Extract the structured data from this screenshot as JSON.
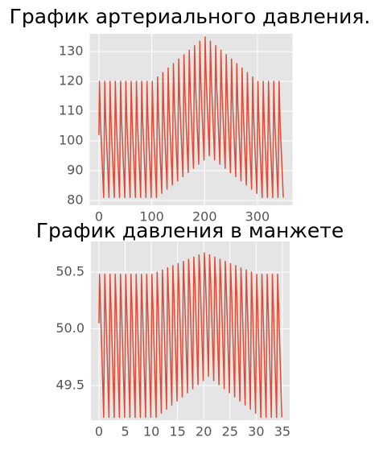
{
  "chart_data": [
    {
      "type": "line",
      "title": "График артериального давления.",
      "x": [
        0,
        1,
        3,
        9,
        11,
        13,
        19,
        21,
        23,
        29,
        31,
        33,
        39,
        41,
        43,
        49,
        51,
        53,
        59,
        61,
        63,
        69,
        71,
        73,
        79,
        81,
        83,
        89,
        91,
        93,
        99,
        101,
        103,
        109,
        111,
        113,
        119,
        121,
        123,
        129,
        131,
        133,
        139,
        141,
        143,
        149,
        151,
        153,
        159,
        161,
        163,
        169,
        171,
        173,
        179,
        181,
        183,
        189,
        191,
        193,
        199,
        201,
        203,
        209,
        211,
        213,
        219,
        221,
        223,
        229,
        231,
        233,
        239,
        241,
        243,
        249,
        251,
        253,
        259,
        261,
        263,
        269,
        271,
        273,
        279,
        281,
        283,
        289,
        291,
        293,
        299,
        301,
        303,
        309,
        311,
        313,
        319,
        321,
        323,
        329,
        331,
        333,
        339,
        341,
        343,
        349
      ],
      "series": [
        {
          "color": "#E24A33",
          "values": [
            102,
            120,
            106,
            81,
            120,
            106,
            81,
            120,
            106,
            81,
            120,
            106,
            81,
            120,
            106,
            81,
            120,
            106,
            81,
            120,
            106,
            81,
            120,
            106,
            81,
            120,
            106,
            81,
            120,
            106,
            81,
            120,
            106,
            81,
            121.5,
            107.5,
            82.4,
            123,
            109,
            83.8,
            124.5,
            110.5,
            85.2,
            126,
            112,
            86.6,
            127.5,
            113.5,
            88,
            129,
            115,
            89.4,
            130.5,
            116.5,
            90.8,
            132,
            118,
            92.2,
            133.5,
            119.5,
            93.6,
            135,
            121,
            95,
            133.5,
            119.5,
            93.6,
            132,
            118,
            92.2,
            130.5,
            116.5,
            90.8,
            129,
            115,
            89.4,
            127.5,
            113.5,
            88,
            126,
            112,
            86.6,
            124.5,
            110.5,
            85.2,
            123,
            109,
            83.8,
            121.5,
            107.5,
            82.4,
            120,
            106,
            81,
            120,
            106,
            81,
            120,
            106,
            81,
            120,
            106,
            81,
            120,
            106,
            81
          ]
        }
      ],
      "xlim": [
        -17.45,
        366.45
      ],
      "ylim": [
        78.4,
        136
      ],
      "xticks": [
        0,
        100,
        200,
        300
      ],
      "yticks": [
        80,
        90,
        100,
        110,
        120,
        130
      ],
      "grid": true
    },
    {
      "type": "line",
      "title": "График давления в манжете",
      "x": [
        0,
        0.1,
        0.3,
        0.9,
        1.1,
        1.3,
        1.9,
        2.1,
        2.3,
        2.9,
        3.1,
        3.3,
        3.9,
        4.1,
        4.3,
        4.9,
        5.1,
        5.3,
        5.9,
        6.1,
        6.3,
        6.9,
        7.1,
        7.3,
        7.9,
        8.1,
        8.3,
        8.9,
        9.1,
        9.3,
        9.9,
        10.1,
        10.3,
        10.9,
        11.1,
        11.3,
        11.9,
        12.1,
        12.3,
        12.9,
        13.1,
        13.3,
        13.9,
        14.1,
        14.3,
        14.9,
        15.1,
        15.3,
        15.9,
        16.1,
        16.3,
        16.9,
        17.1,
        17.3,
        17.9,
        18.1,
        18.3,
        18.9,
        19.1,
        19.3,
        19.9,
        20.1,
        20.3,
        20.9,
        21.1,
        21.3,
        21.9,
        22.1,
        22.3,
        22.9,
        23.1,
        23.3,
        23.9,
        24.1,
        24.3,
        24.9,
        25.1,
        25.3,
        25.9,
        26.1,
        26.3,
        26.9,
        27.1,
        27.3,
        27.9,
        28.1,
        28.3,
        28.9,
        29.1,
        29.3,
        29.9,
        30.1,
        30.3,
        30.9,
        31.1,
        31.3,
        31.9,
        32.1,
        32.3,
        32.9,
        33.1,
        33.3,
        33.9,
        34.1,
        34.3,
        34.9
      ],
      "series": [
        {
          "color": "#E24A33",
          "values": [
            50.05,
            50.48,
            50.18,
            49.22,
            50.48,
            50.18,
            49.22,
            50.48,
            50.18,
            49.22,
            50.48,
            50.18,
            49.22,
            50.48,
            50.18,
            49.22,
            50.48,
            50.18,
            49.22,
            50.48,
            50.18,
            49.22,
            50.48,
            50.18,
            49.22,
            50.48,
            50.18,
            49.22,
            50.48,
            50.18,
            49.22,
            50.48,
            50.18,
            49.22,
            50.499,
            50.21,
            49.256,
            50.518,
            50.24,
            49.292,
            50.537,
            50.27,
            49.328,
            50.556,
            50.3,
            49.364,
            50.575,
            50.33,
            49.4,
            50.594,
            50.36,
            49.436,
            50.613,
            50.39,
            49.472,
            50.632,
            50.42,
            49.508,
            50.651,
            50.45,
            49.544,
            50.67,
            50.48,
            49.58,
            50.651,
            50.45,
            49.544,
            50.632,
            50.42,
            49.508,
            50.613,
            50.39,
            49.472,
            50.594,
            50.36,
            49.436,
            50.575,
            50.33,
            49.4,
            50.556,
            50.3,
            49.364,
            50.537,
            50.27,
            49.328,
            50.518,
            50.24,
            49.292,
            50.499,
            50.21,
            49.256,
            50.48,
            50.18,
            49.22,
            50.48,
            50.18,
            49.22,
            50.48,
            50.18,
            49.22,
            50.48,
            50.18,
            49.22,
            50.48,
            50.18,
            49.22
          ]
        }
      ],
      "xlim": [
        -1.54,
        36.4
      ],
      "ylim": [
        49.195,
        50.77
      ],
      "xticks": [
        0,
        5,
        10,
        15,
        20,
        25,
        30,
        35
      ],
      "yticks": [
        49.5,
        {
          "value": 50,
          "label": "50.0"
        },
        50.5
      ],
      "grid": true
    }
  ]
}
